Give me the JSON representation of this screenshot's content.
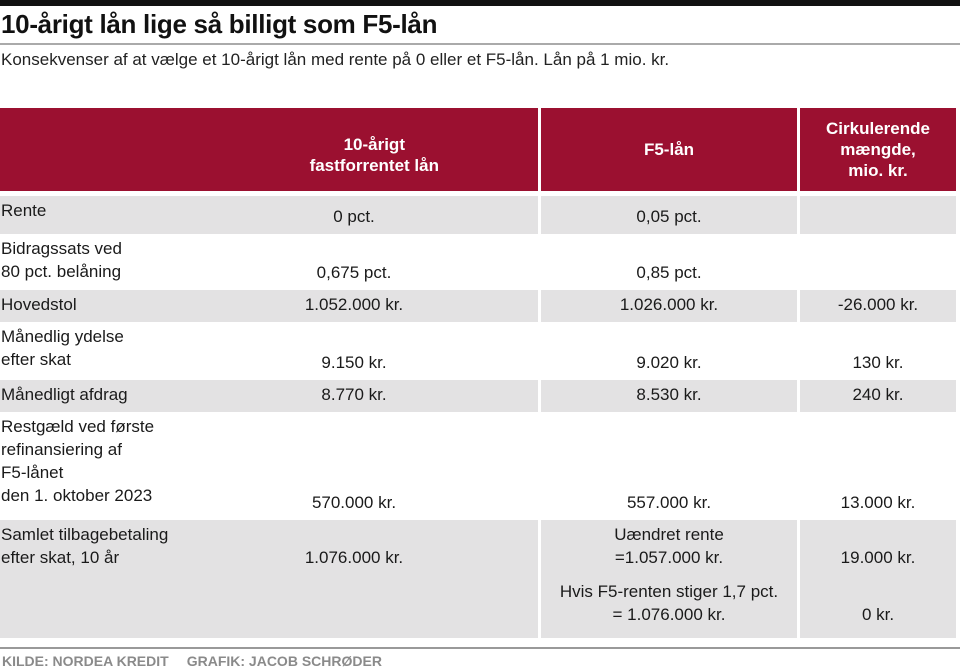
{
  "chart_data": {
    "type": "table",
    "title": "10-årigt lån lige så billigt som F5-lån",
    "subtitle": "Konsekvenser af at vælge et 10-årigt lån med rente på 0 eller et F5-lån. Lån på 1 mio. kr.",
    "columns": [
      "10-årigt\nfastforrentet lån",
      "F5-lån",
      "Cirkulerende\nmængde,\nmio. kr."
    ],
    "rows": [
      {
        "label": "Rente",
        "values": [
          [
            "0 pct."
          ],
          [
            "0,05 pct."
          ],
          []
        ],
        "shade": true
      },
      {
        "label": "Bidragssats ved\n80 pct. belåning",
        "values": [
          [
            "0,675 pct."
          ],
          [
            "0,85 pct."
          ],
          []
        ],
        "shade": false
      },
      {
        "label": "Hovedstol",
        "values": [
          [
            "1.052.000 kr."
          ],
          [
            "1.026.000 kr."
          ],
          [
            "-26.000 kr."
          ]
        ],
        "shade": true
      },
      {
        "label": "Månedlig ydelse\nefter skat",
        "values": [
          [
            "9.150 kr."
          ],
          [
            "9.020 kr."
          ],
          [
            "130 kr."
          ]
        ],
        "shade": false
      },
      {
        "label": "Månedligt afdrag",
        "values": [
          [
            "8.770 kr."
          ],
          [
            "8.530 kr."
          ],
          [
            "240 kr."
          ]
        ],
        "shade": true
      },
      {
        "label": "Restgæld ved første\nrefinansiering af\nF5-lånet\nden 1. oktober 2023",
        "values": [
          [
            "570.000 kr."
          ],
          [
            "557.000 kr."
          ],
          [
            "13.000 kr."
          ]
        ],
        "shade": false
      },
      {
        "label": "Samlet tilbagebetaling\nefter skat, 10 år",
        "values": [
          [
            "1.076.000 kr."
          ],
          [
            "Uændret rente\n=1.057.000 kr.",
            "Hvis F5-renten stiger 1,7 pct.\n= 1.076.000 kr."
          ],
          [
            "19.000 kr.",
            "0 kr."
          ]
        ],
        "shade": true,
        "top": true
      }
    ]
  },
  "footer": {
    "source": "KILDE: NORDEA KREDIT",
    "credit": "GRAFIK: JACOB SCHRØDER"
  },
  "colors": {
    "header": "#9b1030",
    "shade": "#e3e2e3"
  }
}
